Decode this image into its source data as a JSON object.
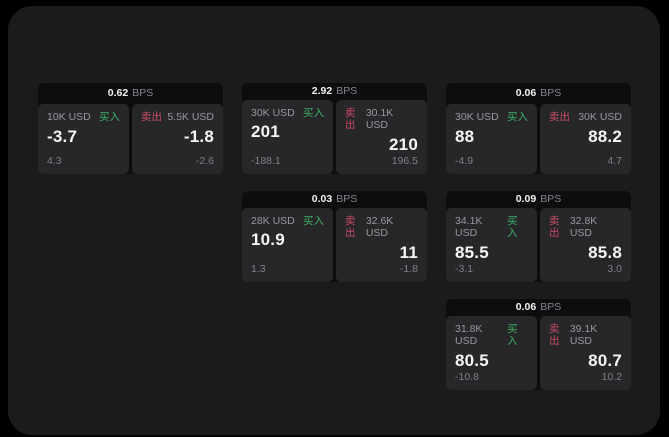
{
  "labels": {
    "bps_unit": "BPS",
    "buy": "买入",
    "sell": "卖出"
  },
  "colors": {
    "background": "#000000",
    "panel": "#1b1b1d",
    "card": "#0d0d0f",
    "pane": "#27272a",
    "buy_green": "#3bb264",
    "sell_red": "#c74b63",
    "text_primary": "#f5f5f7",
    "text_secondary": "#98989d",
    "text_dim": "#7f7f84"
  },
  "cards": [
    {
      "bps": "0.62",
      "buy": {
        "amount": "10K USD",
        "price": "-3.7",
        "sub": "4.3"
      },
      "sell": {
        "amount": "5.5K USD",
        "price": "-1.8",
        "sub": "-2.6"
      }
    },
    {
      "bps": "2.92",
      "buy": {
        "amount": "30K USD",
        "price": "201",
        "sub": "-188.1"
      },
      "sell": {
        "amount": "30.1K USD",
        "price": "210",
        "sub": "196.5"
      }
    },
    {
      "bps": "0.06",
      "buy": {
        "amount": "30K USD",
        "price": "88",
        "sub": "-4.9"
      },
      "sell": {
        "amount": "30K USD",
        "price": "88.2",
        "sub": "4.7"
      }
    },
    {
      "bps": "0.03",
      "buy": {
        "amount": "28K USD",
        "price": "10.9",
        "sub": "1.3"
      },
      "sell": {
        "amount": "32.6K USD",
        "price": "11",
        "sub": "-1.8"
      }
    },
    {
      "bps": "0.09",
      "buy": {
        "amount": "34.1K USD",
        "price": "85.5",
        "sub": "-3.1"
      },
      "sell": {
        "amount": "32.8K USD",
        "price": "85.8",
        "sub": "3.0"
      }
    },
    {
      "bps": "0.06",
      "buy": {
        "amount": "31.8K USD",
        "price": "80.5",
        "sub": "-10.8"
      },
      "sell": {
        "amount": "39.1K USD",
        "price": "80.7",
        "sub": "10.2"
      }
    }
  ]
}
